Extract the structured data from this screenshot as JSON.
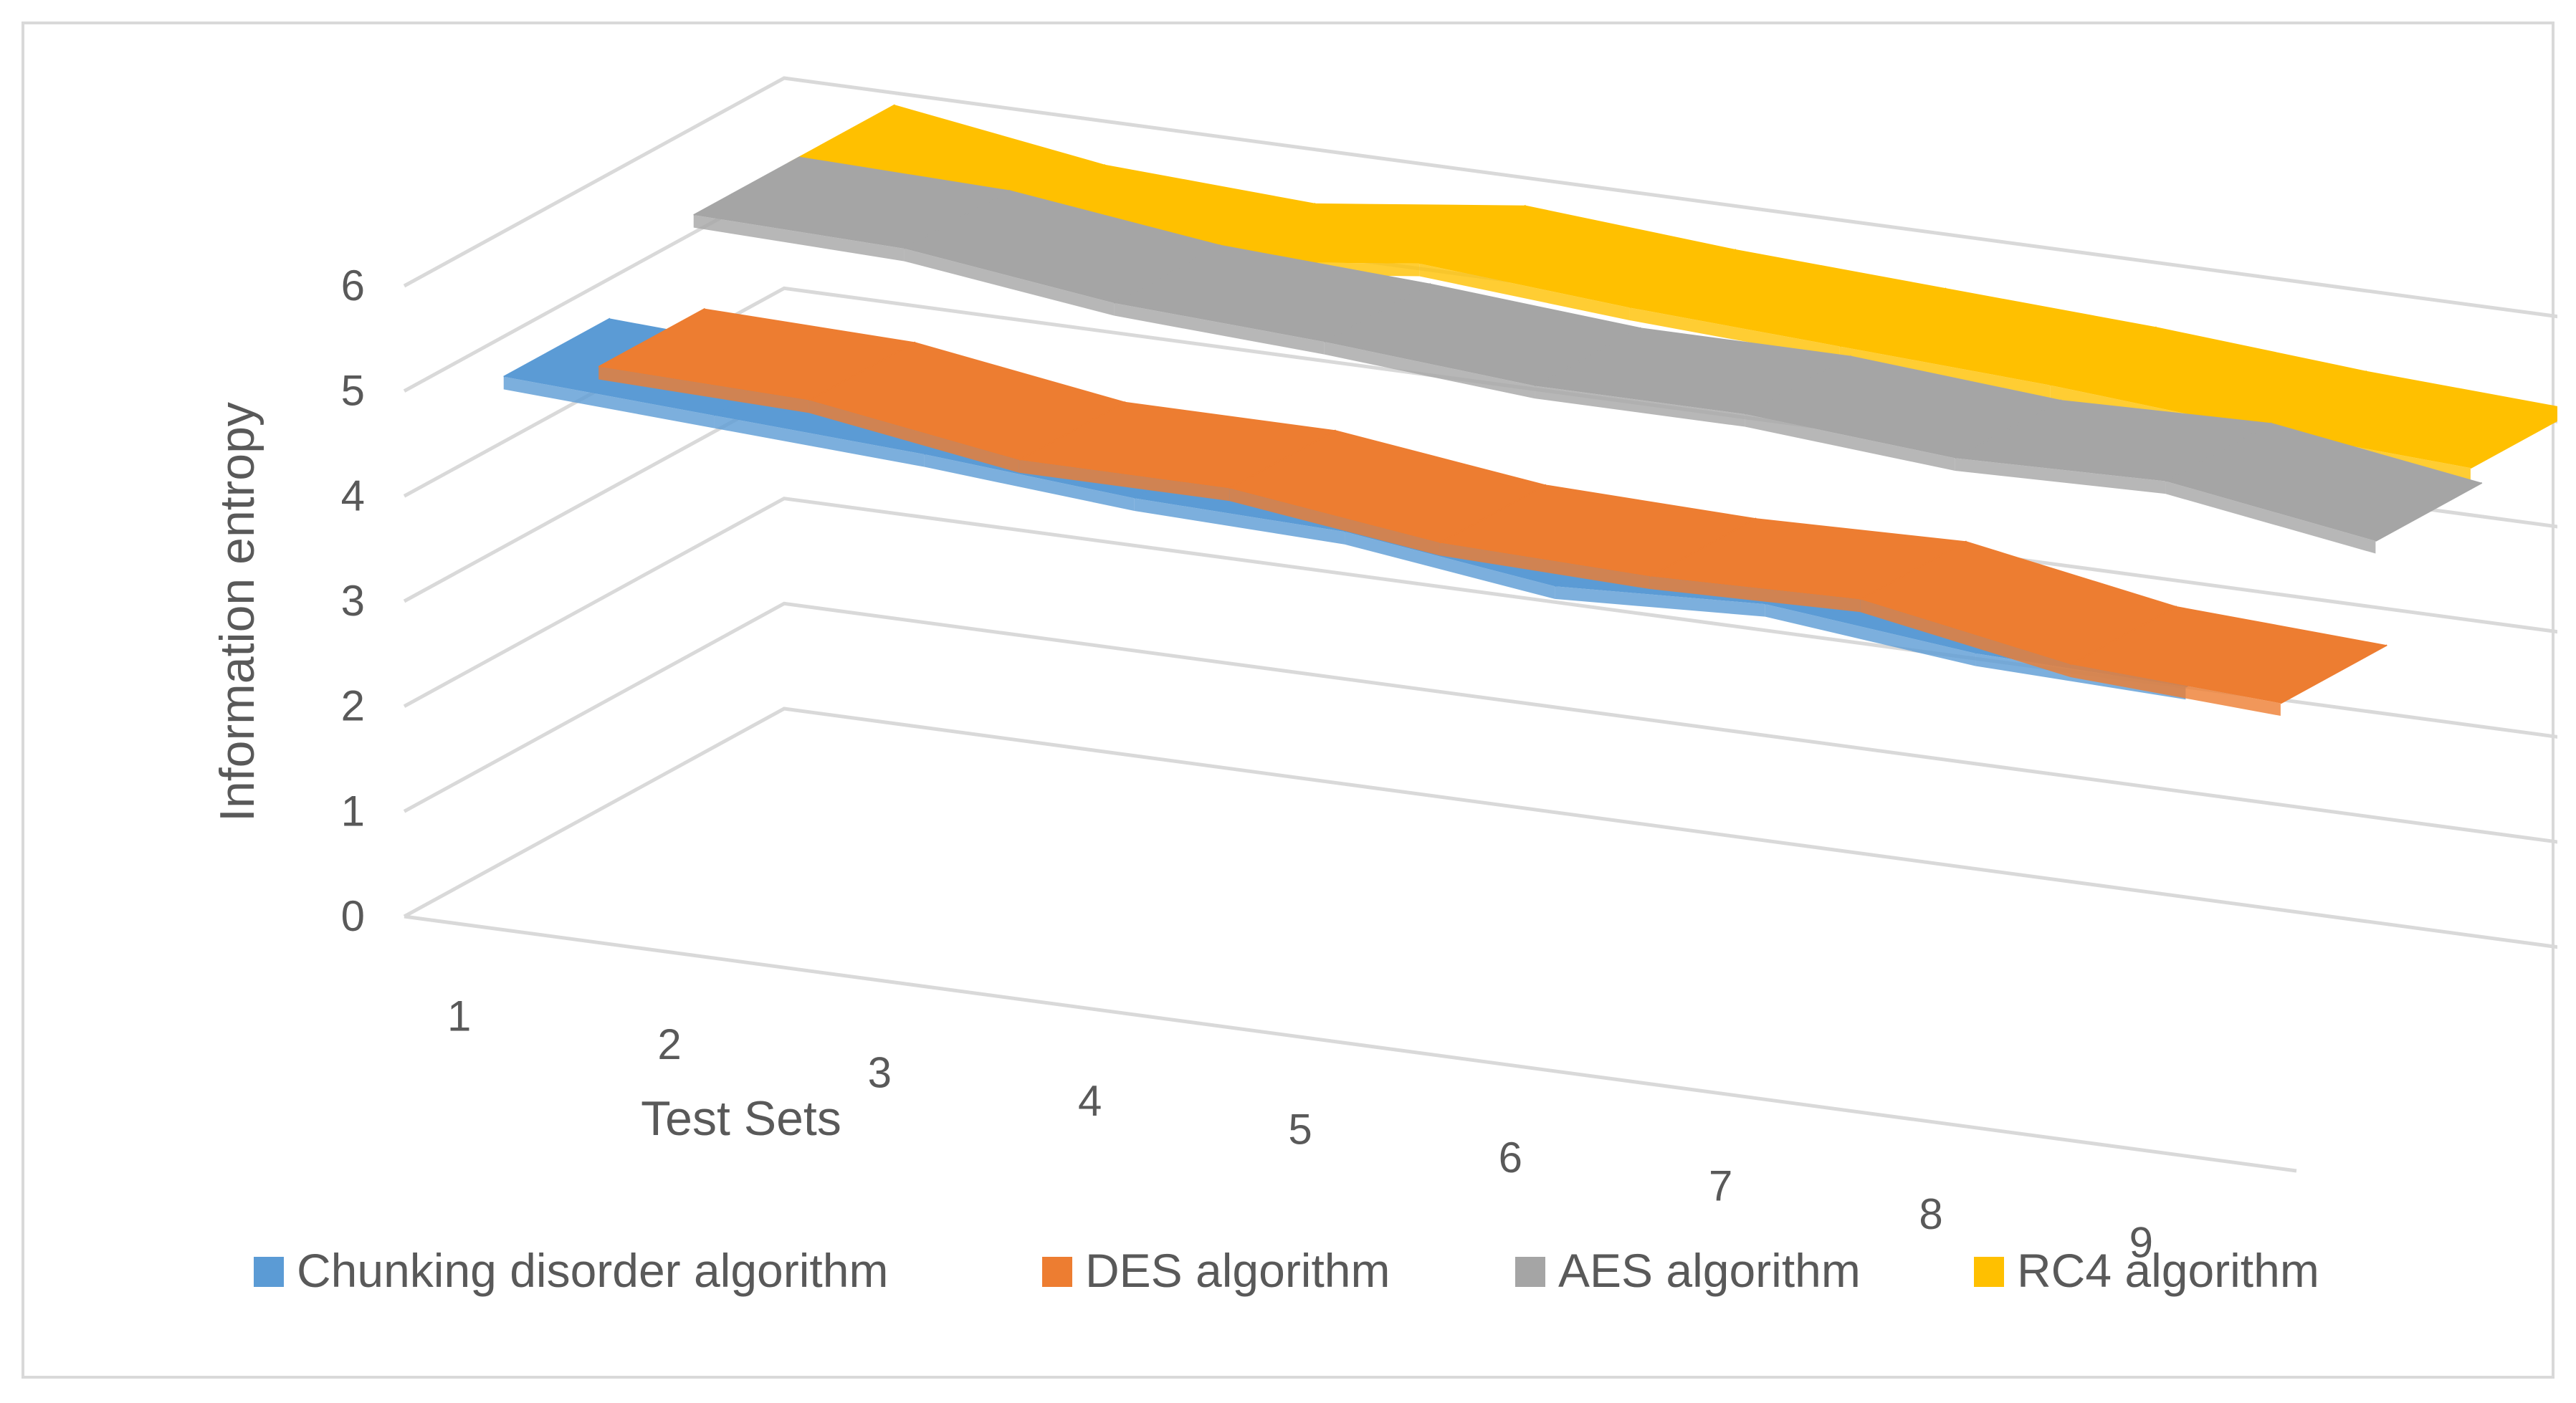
{
  "chart_data": {
    "type": "line",
    "subtype": "3d-line",
    "title": "",
    "xlabel": "Test Sets",
    "ylabel": "Information entropy",
    "ylim": [
      0,
      6
    ],
    "yticks": [
      "0",
      "1",
      "2",
      "3",
      "4",
      "5",
      "6"
    ],
    "categories": [
      "1",
      "2",
      "3",
      "4",
      "5",
      "6",
      "7",
      "8",
      "9"
    ],
    "grid": true,
    "legend_position": "bottom",
    "series": [
      {
        "name": "Chunking disorder algorithm",
        "color": "#5b9bd5",
        "values": [
          5.3,
          5.2,
          5.1,
          4.95,
          4.9,
          4.65,
          4.75,
          4.55,
          4.5
        ]
      },
      {
        "name": "DES algorithm",
        "color": "#ed7d31",
        "values": [
          4.9,
          4.85,
          4.55,
          4.55,
          4.3,
          4.25,
          4.3,
          3.95,
          3.85
        ]
      },
      {
        "name": "AES algorithm",
        "color": "#a5a5a5",
        "values": [
          5.85,
          5.8,
          5.55,
          5.45,
          5.3,
          5.3,
          5.15,
          5.2,
          4.9
        ]
      },
      {
        "name": "RC4 algorithm",
        "color": "#ffc000",
        "values": [
          5.85,
          5.55,
          5.45,
          5.7,
          5.55,
          5.45,
          5.35,
          5.2,
          5.1
        ]
      }
    ]
  }
}
